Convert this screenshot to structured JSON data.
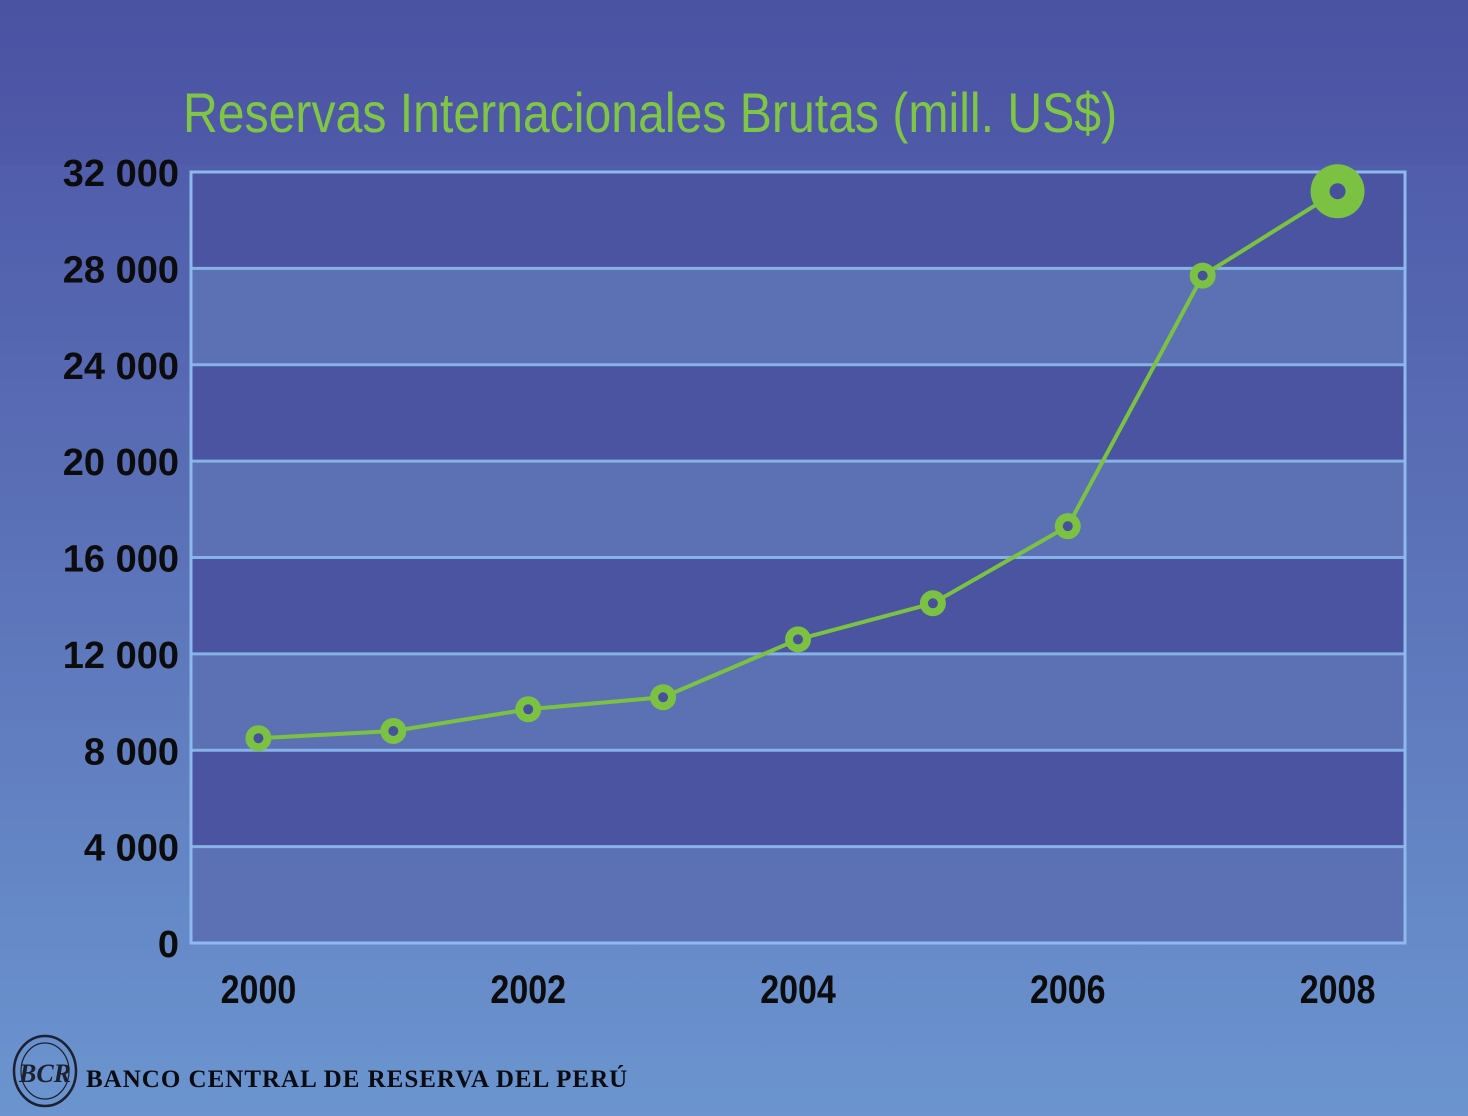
{
  "chart_data": {
    "type": "line",
    "title": "Reservas Internacionales Brutas (mill. US$)",
    "xlabel": "",
    "ylabel": "",
    "x": [
      2000,
      2001,
      2002,
      2003,
      2004,
      2005,
      2006,
      2007,
      2008
    ],
    "series": [
      {
        "values": [
          8500,
          8800,
          9700,
          10200,
          12600,
          14100,
          17300,
          27700,
          31200
        ]
      }
    ],
    "x_ticks": [
      "2000",
      "2002",
      "2004",
      "2006",
      "2008"
    ],
    "y_ticks": [
      "0",
      "4 000",
      "8 000",
      "12 000",
      "16 000",
      "20 000",
      "24 000",
      "28 000",
      "32 000"
    ],
    "ylim": [
      0,
      32000
    ],
    "xlim": [
      1999.5,
      2008.5
    ],
    "grid": true,
    "line_color": "#7cc242",
    "band_colors": [
      "#5b71b4",
      "#4a54a0"
    ],
    "grid_color": "#86b2e6"
  },
  "footer": {
    "bank_name": "BANCO CENTRAL DE RESERVA DEL PERÚ",
    "seal_letters": "BCR"
  }
}
